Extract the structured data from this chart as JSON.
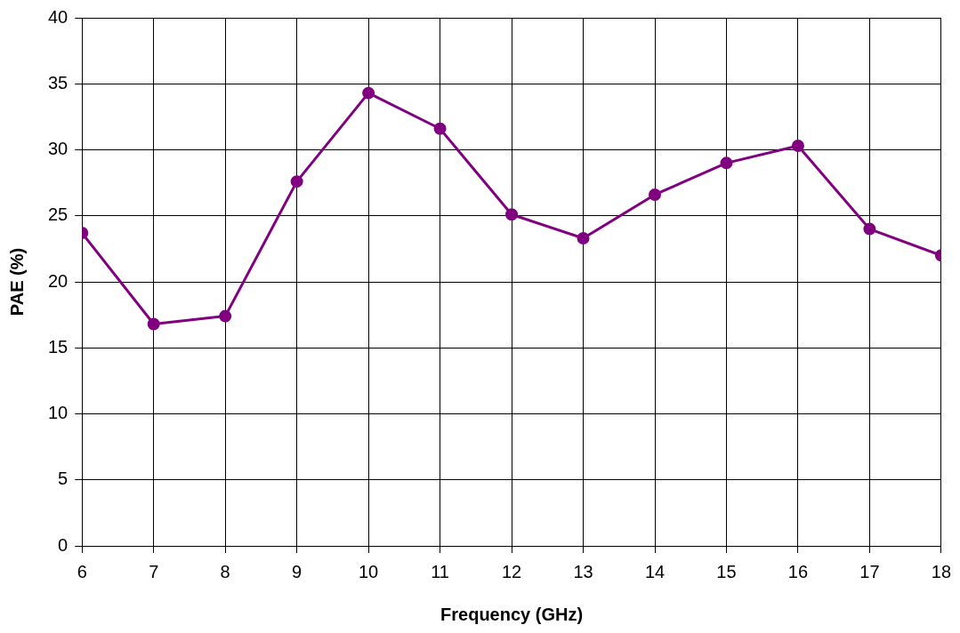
{
  "chart_data": {
    "type": "line",
    "xlabel": "Frequency (GHz)",
    "ylabel": "PAE (%)",
    "x": [
      6,
      7,
      8,
      9,
      10,
      11,
      12,
      13,
      14,
      15,
      16,
      17,
      18
    ],
    "series": [
      {
        "color": "#800080",
        "values": [
          23.7,
          16.8,
          17.4,
          27.6,
          34.3,
          31.6,
          25.1,
          23.3,
          26.6,
          29.0,
          30.3,
          24.0,
          22.0
        ]
      }
    ],
    "xlim": [
      6,
      18
    ],
    "xticks": [
      6,
      7,
      8,
      9,
      10,
      11,
      12,
      13,
      14,
      15,
      16,
      17,
      18
    ],
    "ylim": [
      0,
      40
    ],
    "yticks": [
      0,
      5,
      10,
      15,
      20,
      25,
      30,
      35,
      40
    ],
    "grid": true,
    "marker": "circle",
    "line_style": "solid"
  }
}
